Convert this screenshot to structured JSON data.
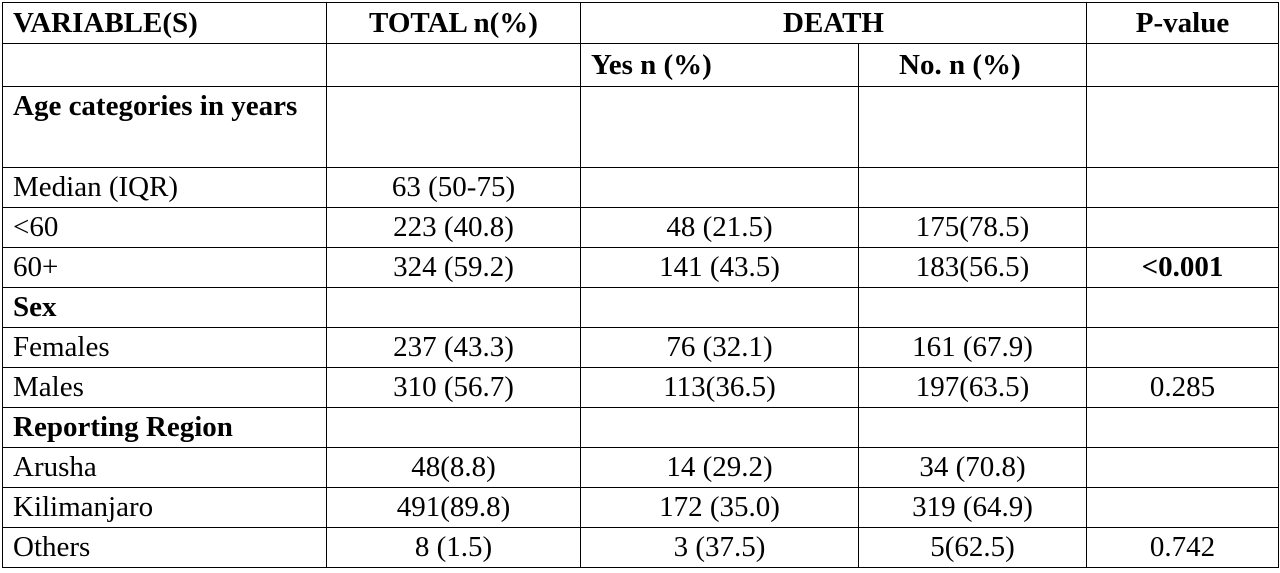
{
  "header": {
    "variable": "VARIABLE(S)",
    "total": "TOTAL n(%)",
    "death": "DEATH",
    "pvalue": "P-value",
    "yes": "Yes n (%)",
    "no": "No. n (%)"
  },
  "sections": {
    "age": {
      "title": "Age categories in years",
      "median_label": "Median (IQR)",
      "median_value": "63 (50-75)",
      "rows": [
        {
          "label": "<60",
          "total": "223 (40.8)",
          "yes": "48 (21.5)",
          "no": "175(78.5)",
          "p": ""
        },
        {
          "label": "60+",
          "total": "324 (59.2)",
          "yes": "141 (43.5)",
          "no": "183(56.5)",
          "p": "<0.001"
        }
      ]
    },
    "sex": {
      "title": "Sex",
      "rows": [
        {
          "label": "Females",
          "total": "237 (43.3)",
          "yes": "76 (32.1)",
          "no": "161 (67.9)",
          "p": ""
        },
        {
          "label": "Males",
          "total": "310 (56.7)",
          "yes": "113(36.5)",
          "no": "197(63.5)",
          "p": "0.285"
        }
      ]
    },
    "region": {
      "title": "Reporting Region",
      "rows": [
        {
          "label": "Arusha",
          "total": "48(8.8)",
          "yes": "14 (29.2)",
          "no": "34 (70.8)",
          "p": ""
        },
        {
          "label": "Kilimanjaro",
          "total": "491(89.8)",
          "yes": "172 (35.0)",
          "no": "319 (64.9)",
          "p": ""
        },
        {
          "label": "Others",
          "total": "8 (1.5)",
          "yes": "3 (37.5)",
          "no": "5(62.5)",
          "p": "0.742"
        }
      ]
    }
  }
}
